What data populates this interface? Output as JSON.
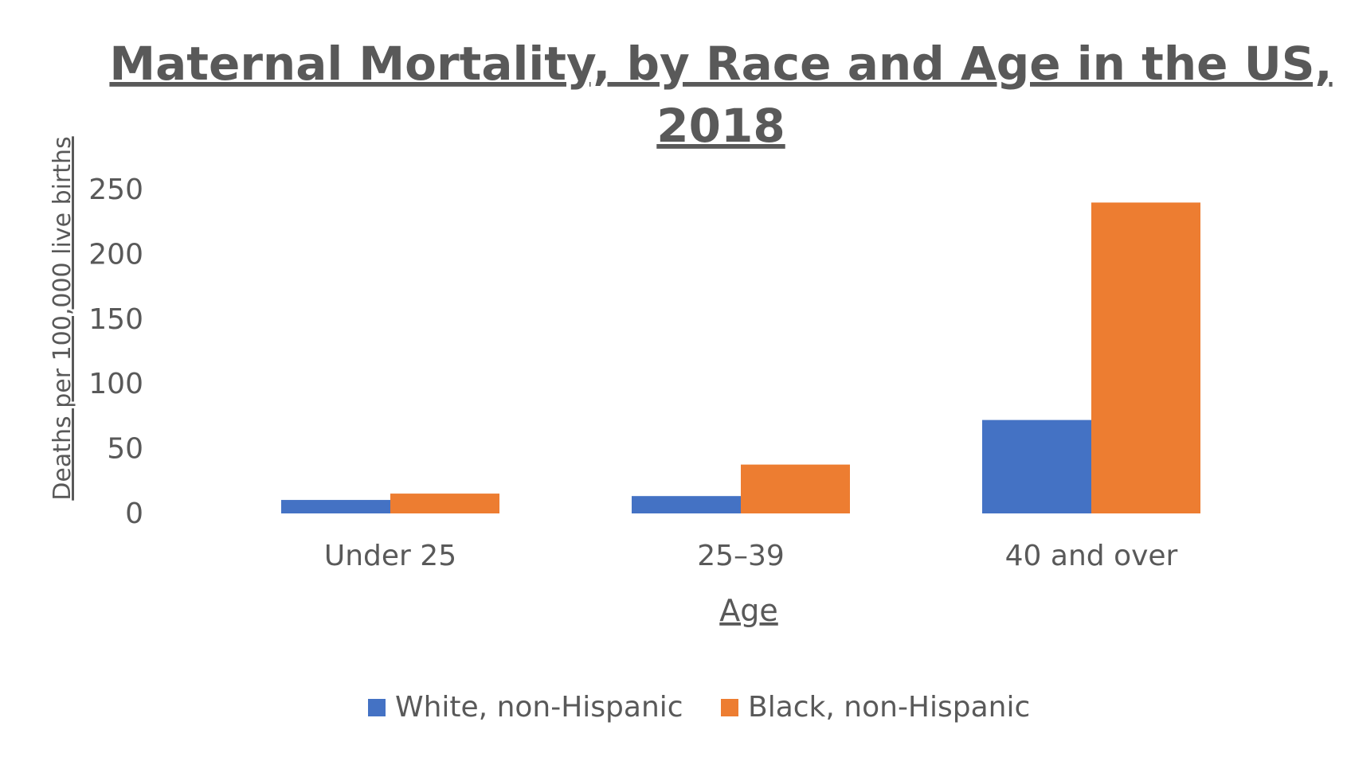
{
  "chart_data": {
    "type": "bar",
    "title": "Maternal Mortality, by Race and Age in the US, 2018",
    "title_lines": [
      "Maternal Mortality, by Race and Age in the US,",
      "2018"
    ],
    "xlabel": "Age",
    "ylabel": "Deaths per 100,000 live births",
    "categories": [
      "Under 25",
      "25–39",
      "40 and over"
    ],
    "series": [
      {
        "name": "White, non-Hispanic",
        "color": "#4472C4",
        "values": [
          10.4,
          13.4,
          72.1
        ]
      },
      {
        "name": "Black, non-Hispanic",
        "color": "#ED7D31",
        "values": [
          15.3,
          37.7,
          239.9
        ]
      }
    ],
    "ylim": [
      0,
      250
    ],
    "yticks": [
      0,
      50,
      100,
      150,
      200,
      250
    ],
    "grid": false,
    "legend_position": "bottom"
  }
}
